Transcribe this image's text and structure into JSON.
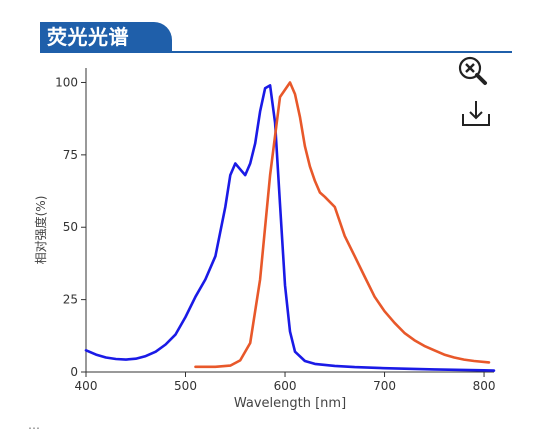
{
  "header": {
    "title": "荧光光谱"
  },
  "toolbar": {
    "zoom_icon": "zoom-reset-icon",
    "download_icon": "download-icon"
  },
  "footer": {
    "text": "…"
  },
  "colors": {
    "header": "#1f5faa",
    "series_blue": "#1a1ae6",
    "series_orange": "#e8582a",
    "axis": "#333333"
  },
  "chart_data": {
    "type": "line",
    "xlabel": "Wavelength [nm]",
    "ylabel": "相对强度(%)",
    "xlim": [
      400,
      810
    ],
    "ylim": [
      0,
      105
    ],
    "x_ticks": [
      400,
      500,
      600,
      700,
      800
    ],
    "y_ticks": [
      0,
      25,
      50,
      75,
      100
    ],
    "grid": false,
    "legend": "none",
    "series": [
      {
        "color": "#1a1ae6",
        "points": [
          [
            400,
            7.5
          ],
          [
            410,
            6
          ],
          [
            420,
            5
          ],
          [
            430,
            4.5
          ],
          [
            440,
            4.3
          ],
          [
            450,
            4.6
          ],
          [
            460,
            5.5
          ],
          [
            470,
            7
          ],
          [
            480,
            9.5
          ],
          [
            490,
            13
          ],
          [
            500,
            19
          ],
          [
            510,
            26
          ],
          [
            520,
            32
          ],
          [
            530,
            40
          ],
          [
            540,
            57
          ],
          [
            545,
            68
          ],
          [
            550,
            72
          ],
          [
            555,
            70
          ],
          [
            560,
            68
          ],
          [
            565,
            72
          ],
          [
            570,
            79
          ],
          [
            575,
            90
          ],
          [
            580,
            98
          ],
          [
            585,
            99
          ],
          [
            590,
            86
          ],
          [
            595,
            58
          ],
          [
            600,
            30
          ],
          [
            605,
            14
          ],
          [
            610,
            7
          ],
          [
            620,
            3.8
          ],
          [
            630,
            2.8
          ],
          [
            650,
            2.1
          ],
          [
            670,
            1.7
          ],
          [
            700,
            1.3
          ],
          [
            750,
            0.9
          ],
          [
            800,
            0.6
          ],
          [
            810,
            0.5
          ]
        ]
      },
      {
        "color": "#e8582a",
        "points": [
          [
            510,
            1.8
          ],
          [
            530,
            1.8
          ],
          [
            545,
            2.2
          ],
          [
            555,
            4
          ],
          [
            565,
            10
          ],
          [
            575,
            32
          ],
          [
            585,
            68
          ],
          [
            595,
            95
          ],
          [
            605,
            100
          ],
          [
            610,
            96
          ],
          [
            615,
            88
          ],
          [
            620,
            78
          ],
          [
            625,
            71
          ],
          [
            630,
            66
          ],
          [
            635,
            62
          ],
          [
            640,
            60.5
          ],
          [
            650,
            57
          ],
          [
            660,
            47
          ],
          [
            670,
            40
          ],
          [
            680,
            33
          ],
          [
            690,
            26
          ],
          [
            700,
            21
          ],
          [
            710,
            17
          ],
          [
            720,
            13.5
          ],
          [
            730,
            11
          ],
          [
            740,
            9
          ],
          [
            750,
            7.5
          ],
          [
            760,
            6
          ],
          [
            770,
            5
          ],
          [
            780,
            4.3
          ],
          [
            790,
            3.8
          ],
          [
            805,
            3.3
          ]
        ]
      }
    ]
  }
}
